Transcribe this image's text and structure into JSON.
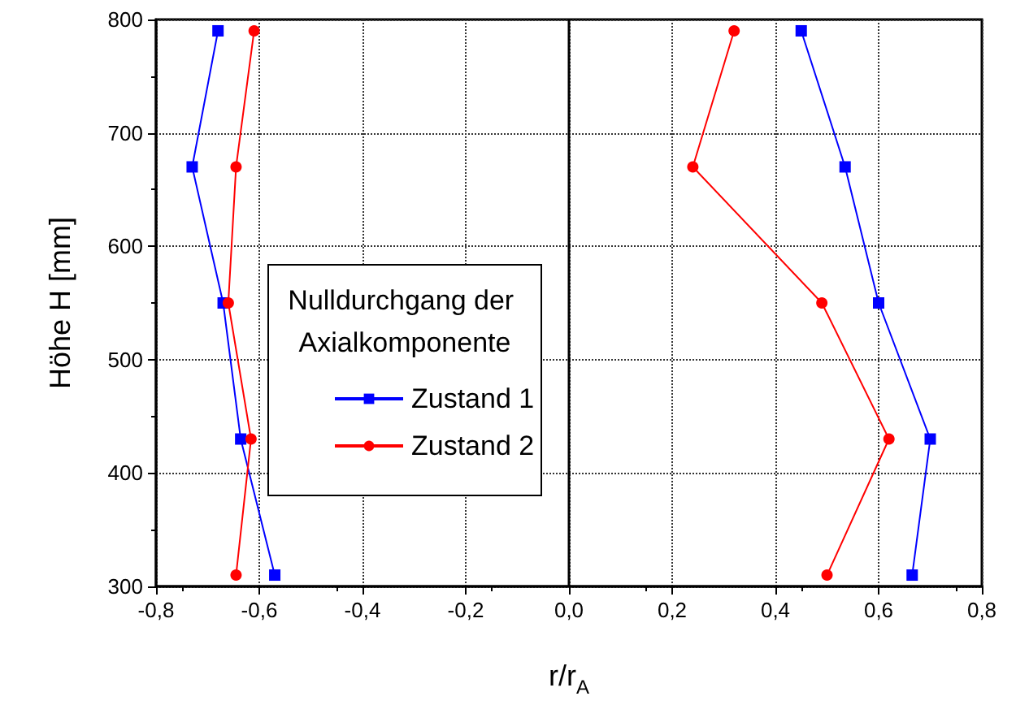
{
  "chart_data": {
    "type": "line",
    "xlabel": "r/r$_{A}$",
    "ylabel": "Höhe H [mm]",
    "legend_title": "Nulldurchgang der Axialkomponente",
    "series": [
      {
        "name": "Zustand 1",
        "color": "#0000ff",
        "marker": "square",
        "x": [
          -0.68,
          -0.73,
          -0.67,
          -0.636,
          -0.57,
          null,
          0.665,
          0.7,
          0.6,
          0.535,
          0.45
        ],
        "values": [
          790,
          670,
          550,
          430,
          310,
          null,
          310,
          430,
          550,
          670,
          790
        ]
      },
      {
        "name": "Zustand 2",
        "color": "#ff0000",
        "marker": "circle",
        "x": [
          -0.61,
          -0.645,
          -0.66,
          -0.616,
          -0.645,
          null,
          0.5,
          0.62,
          0.49,
          0.24,
          0.32
        ],
        "values": [
          790,
          670,
          550,
          430,
          310,
          null,
          310,
          430,
          550,
          670,
          790
        ]
      }
    ],
    "xlim": [
      -0.8,
      0.8
    ],
    "xticks": [
      {
        "value": -0.8,
        "label": "-0,8"
      },
      {
        "value": -0.6,
        "label": "-0,6"
      },
      {
        "value": -0.4,
        "label": "-0,4"
      },
      {
        "value": -0.2,
        "label": "-0,2"
      },
      {
        "value": 0,
        "label": "0,0"
      },
      {
        "value": 0.2,
        "label": "0,2"
      },
      {
        "value": 0.4,
        "label": "0,4"
      },
      {
        "value": 0.6,
        "label": "0,6"
      },
      {
        "value": 0.8,
        "label": "0,8"
      }
    ],
    "ylim": [
      300,
      800
    ],
    "yticks": [
      300,
      400,
      500,
      600,
      700,
      800
    ],
    "ref_lines": [
      {
        "axis": "x",
        "value": 0,
        "color": "#000000"
      }
    ],
    "grid": true,
    "legend": "center left",
    "line_style": "solid"
  }
}
